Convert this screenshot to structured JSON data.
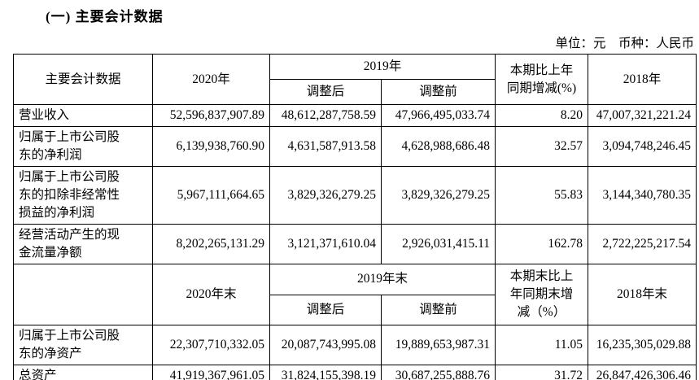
{
  "page": {
    "title": "(一) 主要会计数据",
    "unit_note": "单位：元　币种：人民币"
  },
  "colors": {
    "text": "#000000",
    "border": "#000000",
    "background": "#ffffff"
  },
  "table": {
    "header1": {
      "label": "主要会计数据",
      "y2020": "2020年",
      "y2019": "2019年",
      "adjusted_after": "调整后",
      "adjusted_before": "调整前",
      "change": "本期比上年\n同期增减(%)",
      "y2018": "2018年"
    },
    "rows1": [
      {
        "label": "营业收入",
        "v2020": "52,596,837,907.89",
        "v2019_after": "48,612,287,758.59",
        "v2019_before": "47,966,495,033.74",
        "change": "8.20",
        "v2018": "47,007,321,221.24"
      },
      {
        "label": "归属于上市公司股\n东的净利润",
        "v2020": "6,139,938,760.90",
        "v2019_after": "4,631,587,913.58",
        "v2019_before": "4,628,988,686.48",
        "change": "32.57",
        "v2018": "3,094,748,246.45"
      },
      {
        "label": "归属于上市公司股\n东的扣除非经常性\n损益的净利润",
        "v2020": "5,967,111,664.65",
        "v2019_after": "3,829,326,279.25",
        "v2019_before": "3,829,326,279.25",
        "change": "55.83",
        "v2018": "3,144,340,780.35"
      },
      {
        "label": "经营活动产生的现\n金流量净额",
        "v2020": "8,202,265,131.29",
        "v2019_after": "3,121,371,610.04",
        "v2019_before": "2,926,031,415.11",
        "change": "162.78",
        "v2018": "2,722,225,217.54"
      }
    ],
    "header2": {
      "label": "",
      "y2020": "2020年末",
      "y2019": "2019年末",
      "adjusted_after": "调整后",
      "adjusted_before": "调整前",
      "change": "本期末比上\n年同期末增\n减（%）",
      "y2018": "2018年末"
    },
    "rows2": [
      {
        "label": "归属于上市公司股\n东的净资产",
        "v2020": "22,307,710,332.05",
        "v2019_after": "20,087,743,995.08",
        "v2019_before": "19,889,653,987.31",
        "change": "11.05",
        "v2018": "16,235,305,029.88"
      },
      {
        "label": "总资产",
        "v2020": "41,919,367,961.05",
        "v2019_after": "31,824,155,398.19",
        "v2019_before": "30,687,255,888.76",
        "change": "31.72",
        "v2018": "26,847,426,306.46"
      }
    ]
  }
}
